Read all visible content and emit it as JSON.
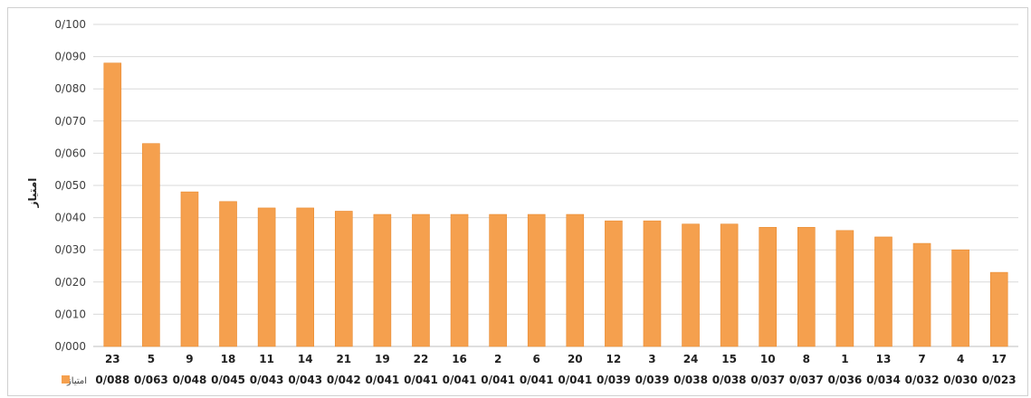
{
  "chart_data": {
    "type": "bar",
    "categories": [
      "23",
      "5",
      "9",
      "18",
      "11",
      "14",
      "21",
      "19",
      "22",
      "16",
      "2",
      "6",
      "20",
      "12",
      "3",
      "24",
      "15",
      "10",
      "8",
      "1",
      "13",
      "7",
      "4",
      "17"
    ],
    "series": [
      {
        "name": "امتیاز",
        "values": [
          0.088,
          0.063,
          0.048,
          0.045,
          0.043,
          0.043,
          0.042,
          0.041,
          0.041,
          0.041,
          0.041,
          0.041,
          0.041,
          0.039,
          0.039,
          0.038,
          0.038,
          0.037,
          0.037,
          0.036,
          0.034,
          0.032,
          0.03,
          0.023
        ],
        "labels": [
          "0/088",
          "0/063",
          "0/048",
          "0/045",
          "0/043",
          "0/043",
          "0/042",
          "0/041",
          "0/041",
          "0/041",
          "0/041",
          "0/041",
          "0/041",
          "0/039",
          "0/039",
          "0/038",
          "0/038",
          "0/037",
          "0/037",
          "0/036",
          "0/034",
          "0/032",
          "0/030",
          "0/023"
        ]
      }
    ],
    "ylabel": "امتیاز",
    "ylim": [
      0,
      0.1
    ],
    "yticks": [
      "0/000",
      "0/010",
      "0/020",
      "0/030",
      "0/040",
      "0/050",
      "0/060",
      "0/070",
      "0/080",
      "0/090",
      "0/100"
    ],
    "grid": true,
    "legend": "bottom-left",
    "data_table": true,
    "colors": {
      "bar": "#F5A04E",
      "bar_edge": "#E98A2F",
      "grid": "#d9d9d9",
      "axis": "#bfbfbf"
    }
  }
}
